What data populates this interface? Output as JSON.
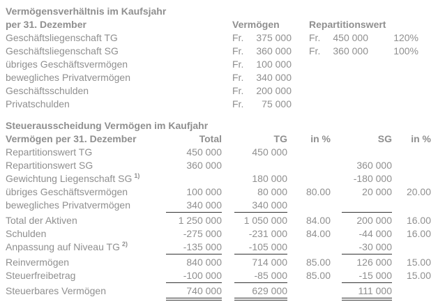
{
  "colors": {
    "text": "#8f8f8f",
    "rule": "#333333"
  },
  "section1": {
    "title_line1": "Vermögensverhältnis im Kaufsjahr",
    "title_line2": "per 31. Dezember",
    "col_vermoegen": "Vermögen",
    "col_repartitionswert": "Repartitionswert",
    "rows": [
      {
        "label": "Geschäftsliegenschaft TG",
        "fr1": "Fr.",
        "vermoegen": "375 000",
        "fr2": "Fr.",
        "repartition": "450 000",
        "percent": "120%"
      },
      {
        "label": "Geschäftsliegenschaft SG",
        "fr1": "Fr.",
        "vermoegen": "360 000",
        "fr2": "Fr.",
        "repartition": "360 000",
        "percent": "100%"
      },
      {
        "label": "übriges Geschäftsvermögen",
        "fr1": "Fr.",
        "vermoegen": "100 000"
      },
      {
        "label": "bewegliches Privatvermögen",
        "fr1": "Fr.",
        "vermoegen": "340 000"
      },
      {
        "label": "Geschäftsschulden",
        "fr1": "Fr.",
        "vermoegen": "200 000"
      },
      {
        "label": "Privatschulden",
        "fr1": "Fr.",
        "vermoegen": "75 000"
      }
    ]
  },
  "section2": {
    "title": "Steuerausscheidung Vermögen im Kaufjahr",
    "header": {
      "label": "Vermögen per 31. Dezember",
      "total": "Total",
      "tg": "TG",
      "tg_pct": "in %",
      "sg": "SG",
      "sg_pct": "in %"
    },
    "rows": [
      {
        "label": "Repartitionswert TG",
        "total": "450 000",
        "tg": "450 000"
      },
      {
        "label": "Repartitionswert SG",
        "total": "360 000",
        "sg": "360 000"
      },
      {
        "label": "Gewichtung Liegenschaft SG",
        "sup": "1)",
        "tg": "180 000",
        "sg": "-180 000"
      },
      {
        "label": "übriges Geschäftsvermögen",
        "total": "100 000",
        "tg": "80 000",
        "tg_pct": "80.00",
        "sg": "20 000",
        "sg_pct": "20.00"
      },
      {
        "label": "bewegliches Privatvermögen",
        "total": "340 000",
        "tg": "340 000"
      },
      {
        "label": "Total der Aktiven",
        "total": "1 250 000",
        "tg": "1 050 000",
        "tg_pct": "84.00",
        "sg": "200 000",
        "sg_pct": "16.00"
      },
      {
        "label": "Schulden",
        "total": "-275 000",
        "tg": "-231 000",
        "tg_pct": "84.00",
        "sg": "-44 000",
        "sg_pct": "16.00"
      },
      {
        "label": "Anpassung auf Niveau TG",
        "sup": "2)",
        "total": "-135 000",
        "tg": "-105 000",
        "sg": "-30 000"
      },
      {
        "label": "Reinvermögen",
        "total": "840 000",
        "tg": "714 000",
        "tg_pct": "85.00",
        "sg": "126 000",
        "sg_pct": "15.00"
      },
      {
        "label": "Steuerfreibetrag",
        "total": "-100 000",
        "tg": "-85 000",
        "tg_pct": "85.00",
        "sg": "-15 000",
        "sg_pct": "15.00"
      },
      {
        "label": "Steuerbares Vermögen",
        "total": "740 000",
        "tg": "629 000",
        "sg": "111 000"
      }
    ]
  }
}
